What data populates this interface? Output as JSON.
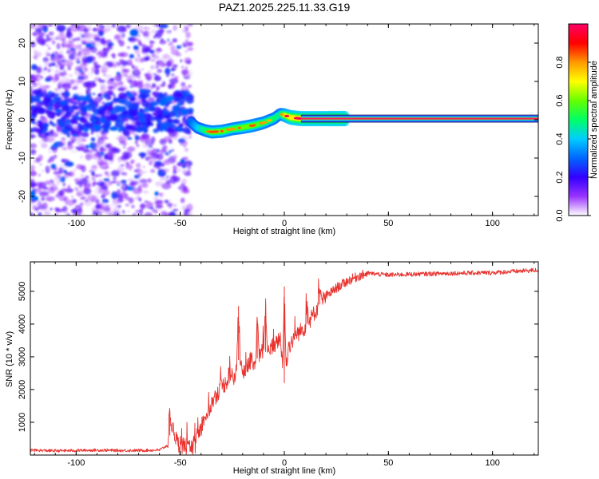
{
  "title": "PAZ1.2025.225.11.33.G19",
  "chart_data": [
    {
      "type": "heatmap",
      "xlabel": "Height of straight line (km)",
      "ylabel": "Frequency (Hz)",
      "xlim": [
        -122,
        122
      ],
      "ylim": [
        -25,
        25
      ],
      "x_ticks": [
        -100,
        -50,
        0,
        50,
        100
      ],
      "x_tick_labels": [
        "-100",
        "-50",
        "0",
        "50",
        "100"
      ],
      "y_ticks": [
        -20,
        -10,
        0,
        10,
        20
      ],
      "y_tick_labels": [
        "-20",
        "-10",
        "0",
        "10",
        "20"
      ],
      "colorbar": {
        "label": "Normalized spectral amplitude",
        "range": [
          0,
          1
        ],
        "ticks": [
          0.0,
          0.2,
          0.4,
          0.6,
          0.8
        ],
        "tick_labels": [
          "0.0",
          "0.2",
          "0.4",
          "0.6",
          "0.8"
        ],
        "colormap": [
          "#ffffff",
          "#9933ff",
          "#3300ff",
          "#0066ff",
          "#00ccff",
          "#00ff66",
          "#66ff00",
          "#ffff00",
          "#ff9900",
          "#ff0000",
          "#ff0066"
        ]
      },
      "noise_region": {
        "x_range": [
          -122,
          -45
        ],
        "y_range": [
          -25,
          25
        ],
        "description": "scattered low amplitude"
      },
      "ridge": {
        "x": [
          -45,
          -42,
          -38,
          -35,
          -30,
          -25,
          -20,
          -15,
          -10,
          -5,
          -2,
          0,
          3,
          8,
          15,
          25,
          50,
          75,
          100,
          122
        ],
        "y": [
          -0.5,
          -2.0,
          -2.8,
          -3.2,
          -3.0,
          -2.4,
          -2.0,
          -1.5,
          -0.8,
          0.3,
          1.5,
          1.2,
          0.6,
          0.3,
          0.3,
          0.3,
          0.3,
          0.3,
          0.3,
          0.3
        ],
        "amplitude": [
          0.3,
          0.4,
          0.5,
          0.6,
          0.6,
          0.55,
          0.6,
          0.6,
          0.55,
          0.5,
          0.45,
          0.7,
          0.85,
          0.9,
          0.9,
          0.92,
          0.92,
          0.92,
          0.92,
          0.92
        ]
      }
    },
    {
      "type": "line",
      "xlabel": "Height of straight line (km)",
      "ylabel": "SNR (10 * v/v)",
      "xlim": [
        -122,
        122
      ],
      "ylim": [
        0,
        5900
      ],
      "x_ticks": [
        -100,
        -50,
        0,
        50,
        100
      ],
      "x_tick_labels": [
        "-100",
        "-50",
        "0",
        "50",
        "100"
      ],
      "y_ticks": [
        1000,
        2000,
        3000,
        4000,
        5000
      ],
      "y_tick_labels": [
        "1000",
        "2000",
        "3000",
        "4000",
        "5000"
      ],
      "grid": false,
      "color": "#e8322e",
      "envelope": {
        "x": [
          -122,
          -110,
          -100,
          -90,
          -80,
          -70,
          -60,
          -56,
          -54,
          -52,
          -50,
          -48,
          -46,
          -44,
          -42,
          -40,
          -38,
          -36,
          -34,
          -32,
          -30,
          -28,
          -26,
          -24,
          -22,
          -20,
          -18,
          -16,
          -14,
          -12,
          -10,
          -8,
          -6,
          -4,
          -2,
          0,
          2,
          4,
          6,
          8,
          10,
          12,
          14,
          16,
          18,
          20,
          25,
          30,
          35,
          40,
          50,
          60,
          80,
          100,
          122
        ],
        "y": [
          150,
          130,
          140,
          150,
          140,
          140,
          150,
          300,
          900,
          500,
          200,
          350,
          150,
          250,
          700,
          800,
          1200,
          1400,
          1700,
          1900,
          2100,
          2200,
          2500,
          2300,
          2900,
          2500,
          2700,
          2900,
          2800,
          3100,
          3200,
          3100,
          3300,
          3400,
          3600,
          2200,
          3300,
          3500,
          3700,
          3800,
          3900,
          4100,
          4300,
          4500,
          4700,
          4850,
          5100,
          5300,
          5450,
          5550,
          5500,
          5520,
          5550,
          5570,
          5650
        ]
      },
      "spikes": [
        {
          "x": -55,
          "y": 1380
        },
        {
          "x": -22,
          "y": 4550
        },
        {
          "x": -13,
          "y": 4150
        },
        {
          "x": -9,
          "y": 4400
        },
        {
          "x": 0,
          "y": 5150
        },
        {
          "x": 11,
          "y": 4700
        },
        {
          "x": 17,
          "y": 5050
        }
      ]
    }
  ]
}
